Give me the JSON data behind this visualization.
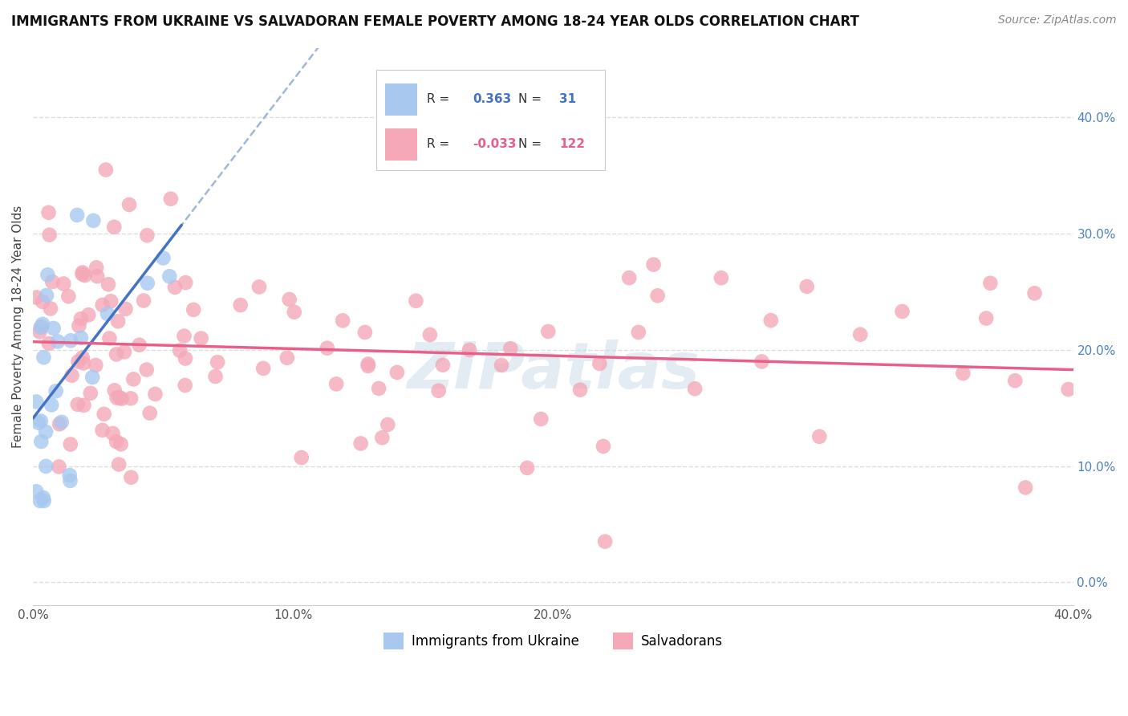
{
  "title": "IMMIGRANTS FROM UKRAINE VS SALVADORAN FEMALE POVERTY AMONG 18-24 YEAR OLDS CORRELATION CHART",
  "source": "Source: ZipAtlas.com",
  "ylabel": "Female Poverty Among 18-24 Year Olds",
  "legend_labels": [
    "Immigrants from Ukraine",
    "Salvadorans"
  ],
  "r_ukraine": 0.363,
  "n_ukraine": 31,
  "r_salvadoran": -0.033,
  "n_salvadoran": 122,
  "ukraine_color": "#a8c8f0",
  "ukraine_line_color": "#4472c4",
  "ukraine_dash_color": "#a0b8d8",
  "salvadoran_color": "#f4a8b8",
  "salvadoran_line_color": "#e8608a",
  "right_yticks": [
    0.0,
    0.1,
    0.2,
    0.3,
    0.4
  ],
  "right_ytick_labels": [
    "0.0%",
    "10.0%",
    "20.0%",
    "30.0%",
    "40.0%"
  ],
  "xlim": [
    0.0,
    0.4
  ],
  "ylim": [
    -0.02,
    0.46
  ],
  "background_color": "#ffffff",
  "grid_color": "#dddddd",
  "watermark_text": "ZIPatlas",
  "watermark_color": "#c8d8e8",
  "title_fontsize": 12,
  "source_fontsize": 10,
  "tick_fontsize": 11,
  "ylabel_fontsize": 11
}
